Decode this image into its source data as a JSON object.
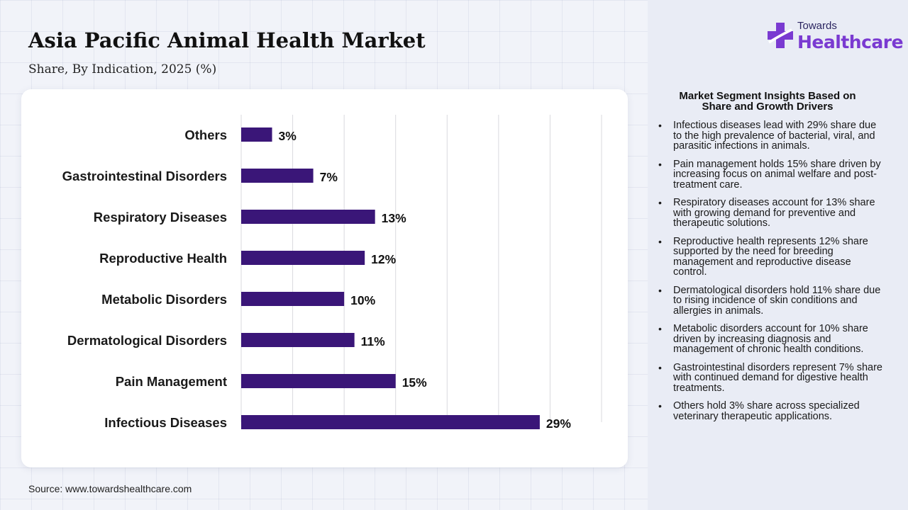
{
  "header": {
    "title": "Asia Pacific Animal Health Market",
    "subtitle": "Share, By Indication, 2025 (%)"
  },
  "logo": {
    "top": "Towards",
    "main": "Healthcare",
    "icon": "medical-cross-icon"
  },
  "source": "Source: www.towardshealthcare.com",
  "insights": {
    "heading_line1": "Market Segment Insights Based on",
    "heading_line2": "Share and Growth Drivers",
    "items": [
      "Infectious diseases lead with 29% share due to the high prevalence of bacterial, viral, and parasitic infections in animals.",
      "Pain management holds 15% share driven by increasing focus on animal welfare and post-treatment care.",
      "Respiratory diseases account for 13% share with growing demand for preventive and therapeutic solutions.",
      "Reproductive health represents 12% share supported by the need for breeding management and reproductive disease control.",
      "Dermatological disorders hold 11% share due to rising incidence of skin conditions and allergies in animals.",
      "Metabolic disorders account for 10% share driven by increasing diagnosis and management of chronic health conditions.",
      "Gastrointestinal disorders represent 7% share with continued demand for digestive health treatments.",
      "Others hold 3% share across specialized veterinary therapeutic applications."
    ]
  },
  "colors": {
    "bar": "#3a1678",
    "grid": "#d9d9de",
    "logo_cross": "#7a3ad1",
    "logo_text": "#2b2560"
  },
  "chart_data": {
    "type": "bar",
    "orientation": "horizontal",
    "title": "Asia Pacific Animal Health Market",
    "subtitle": "Share, By Indication, 2025 (%)",
    "categories": [
      "Others",
      "Gastrointestinal Disorders",
      "Respiratory Diseases",
      "Reproductive Health",
      "Metabolic Disorders",
      "Dermatological Disorders",
      "Pain Management",
      "Infectious Diseases"
    ],
    "values": [
      3,
      7,
      13,
      12,
      10,
      11,
      15,
      29
    ],
    "value_labels": [
      "3%",
      "7%",
      "13%",
      "12%",
      "10%",
      "11%",
      "15%",
      "29%"
    ],
    "xlim": [
      0,
      35
    ],
    "grid": true,
    "xlabel": "",
    "ylabel": ""
  }
}
